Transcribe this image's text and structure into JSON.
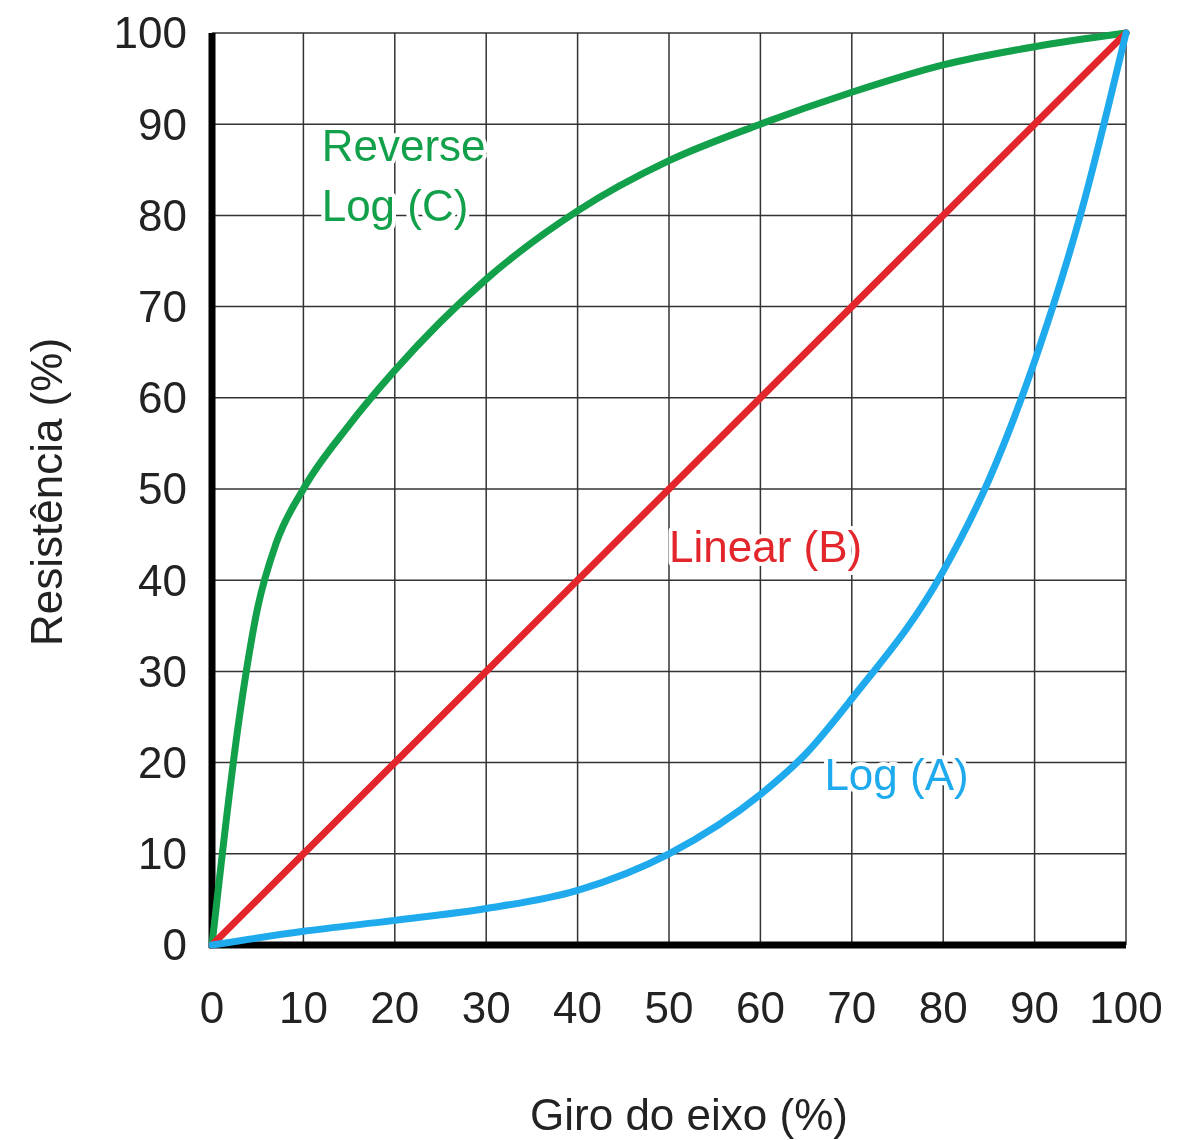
{
  "chart_data": {
    "type": "line",
    "xlabel": "Giro do eixo (%)",
    "ylabel": "Resistência (%)",
    "xlim": [
      0,
      100
    ],
    "ylim": [
      0,
      100
    ],
    "xticks": [
      0,
      10,
      20,
      30,
      40,
      50,
      60,
      70,
      80,
      90,
      100
    ],
    "yticks": [
      0,
      10,
      20,
      30,
      40,
      50,
      60,
      70,
      80,
      90,
      100
    ],
    "grid": true,
    "marker": "none",
    "line_style": "solid",
    "series": [
      {
        "name": "Reverse Log (C)",
        "color": "#13a04a",
        "x": [
          0,
          3,
          5,
          7,
          10,
          15,
          20,
          30,
          40,
          50,
          60,
          70,
          80,
          90,
          100
        ],
        "values": [
          0,
          25,
          37,
          44,
          50,
          57,
          63,
          73,
          80.5,
          86,
          90,
          93.5,
          96.5,
          98.5,
          100
        ]
      },
      {
        "name": "Linear (B)",
        "color": "#e3262b",
        "x": [
          0,
          100
        ],
        "values": [
          0,
          100
        ]
      },
      {
        "name": "Log (A)",
        "color": "#1eaaec",
        "x": [
          0,
          10,
          20,
          30,
          40,
          50,
          60,
          65,
          70,
          80,
          85,
          90,
          95,
          100
        ],
        "values": [
          0,
          1.5,
          2.7,
          4,
          6,
          10,
          16.5,
          21,
          27,
          41,
          51,
          64,
          80,
          100
        ]
      }
    ]
  }
}
